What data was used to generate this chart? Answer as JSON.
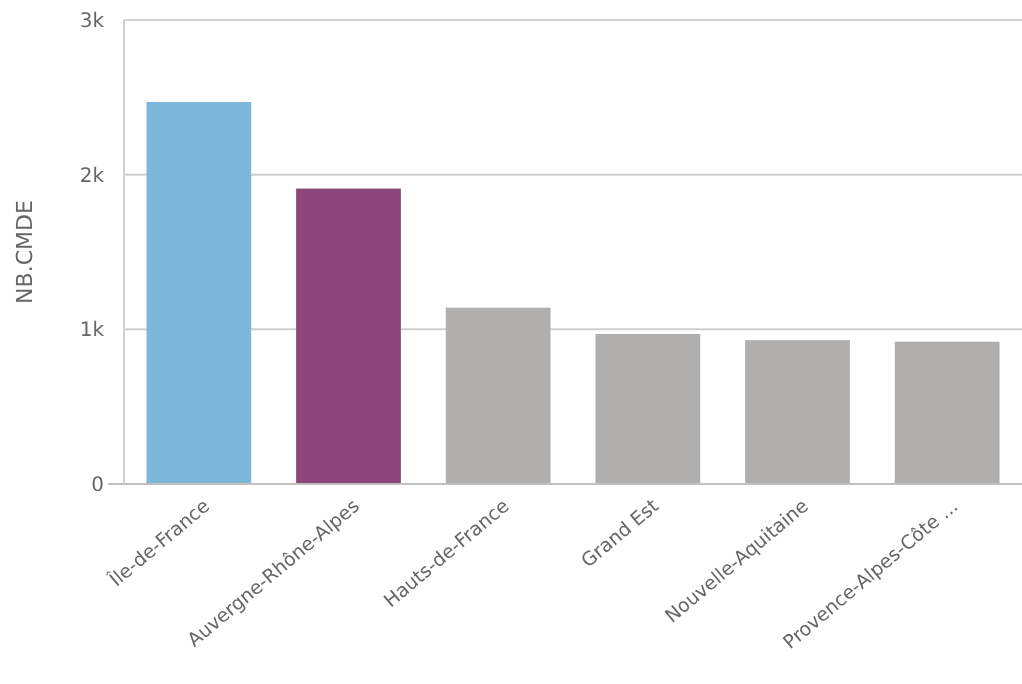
{
  "chart_data": {
    "type": "bar",
    "ylabel": "NB.CMDE",
    "categories": [
      "Île-de-France",
      "Auvergne-Rhône-Alpes",
      "Hauts-de-France",
      "Grand Est",
      "Nouvelle-Aquitaine",
      "Provence-Alpes-Côte ..."
    ],
    "values": [
      2470,
      1910,
      1140,
      970,
      930,
      920
    ],
    "colors": [
      "#7db8da",
      "#8c4679",
      "#b0afae",
      "#b0afae",
      "#b0afae",
      "#b0afae"
    ],
    "ylim": [
      0,
      3000
    ],
    "yticks": [
      {
        "value": 0,
        "label": "0"
      },
      {
        "value": 1000,
        "label": "1k"
      },
      {
        "value": 2000,
        "label": "2k"
      },
      {
        "value": 3000,
        "label": "3k"
      }
    ],
    "grid": "y"
  }
}
